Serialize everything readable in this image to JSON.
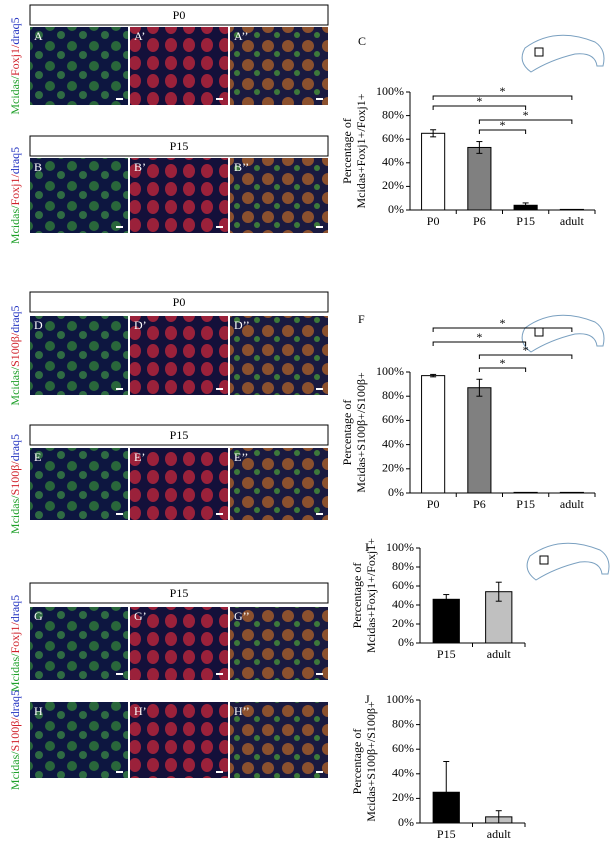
{
  "groups": [
    {
      "header": "P0",
      "rows": [
        {
          "stain": [
            "Mcidas/",
            "Foxj1/",
            "draq5"
          ],
          "labels": [
            "A",
            "A’",
            "A’’"
          ]
        }
      ]
    },
    {
      "header": "P15",
      "rows": [
        {
          "stain": [
            "Mcidas/",
            "Foxj1/",
            "draq5"
          ],
          "labels": [
            "B",
            "B’",
            "B’’"
          ]
        }
      ]
    },
    {
      "header": "P0",
      "rows": [
        {
          "stain": [
            "Mcidas/",
            "S100β/",
            "draq5"
          ],
          "labels": [
            "D",
            "D’",
            "D’’"
          ]
        }
      ]
    },
    {
      "header": "P15",
      "rows": [
        {
          "stain": [
            "Mcidas/",
            "S100β/",
            "draq5"
          ],
          "labels": [
            "E",
            "E’",
            "E’’"
          ]
        }
      ]
    },
    {
      "header": "P15",
      "rows": [
        {
          "stain": [
            "Mcidas/",
            "Foxj1/",
            "draq5"
          ],
          "labels": [
            "G",
            "G’",
            "G’’"
          ]
        },
        {
          "stain": [
            "Mcidas/",
            "S100β/",
            "draq5"
          ],
          "labels": [
            "H",
            "H’",
            "H’’"
          ]
        }
      ]
    }
  ],
  "chart_data": [
    {
      "type": "bar",
      "panel": "C",
      "ylabel": [
        "Percentage of",
        "Mcidas+Foxj1+/Foxj1+"
      ],
      "categories": [
        "P0",
        "P6",
        "P15",
        "adult"
      ],
      "values": [
        65,
        53,
        4,
        0.5
      ],
      "errors": [
        3,
        5,
        2,
        0
      ],
      "colors": [
        "#ffffff",
        "#808080",
        "#000000",
        "#000000"
      ],
      "ylim": [
        0,
        100
      ],
      "yticks": [
        {
          "value": 0,
          "label": "0%"
        },
        {
          "value": 20,
          "label": "20%"
        },
        {
          "value": 40,
          "label": "40%"
        },
        {
          "value": 60,
          "label": "60%"
        },
        {
          "value": 80,
          "label": "80%"
        },
        {
          "value": 100,
          "label": "100%"
        }
      ],
      "annotations": [
        "*",
        "*",
        "*",
        "*"
      ]
    },
    {
      "type": "bar",
      "panel": "F",
      "ylabel": [
        "Percentage of",
        "Mcidas+S100β+/S100β+"
      ],
      "categories": [
        "P0",
        "P6",
        "P15",
        "adult"
      ],
      "values": [
        97,
        87,
        0.5,
        0.5
      ],
      "errors": [
        1,
        7,
        0,
        0
      ],
      "colors": [
        "#ffffff",
        "#808080",
        "#000000",
        "#000000"
      ],
      "ylim": [
        0,
        100
      ],
      "yticks": [
        {
          "value": 0,
          "label": "0%"
        },
        {
          "value": 20,
          "label": "20%"
        },
        {
          "value": 40,
          "label": "40%"
        },
        {
          "value": 60,
          "label": "60%"
        },
        {
          "value": 80,
          "label": "80%"
        },
        {
          "value": 100,
          "label": "100%"
        }
      ],
      "annotations": [
        "*",
        "*",
        "*",
        "*"
      ]
    },
    {
      "type": "bar",
      "panel": "I",
      "ylabel": [
        "Percentage of",
        "Mcidas+Foxj1+/Foxj1+"
      ],
      "categories": [
        "P15",
        "adult"
      ],
      "values": [
        46,
        54
      ],
      "errors": [
        5,
        10
      ],
      "colors": [
        "#000000",
        "#c0c0c0"
      ],
      "ylim": [
        0,
        100
      ],
      "yticks": [
        {
          "value": 0,
          "label": "0%"
        },
        {
          "value": 20,
          "label": "20%"
        },
        {
          "value": 40,
          "label": "40%"
        },
        {
          "value": 60,
          "label": "60%"
        },
        {
          "value": 80,
          "label": "80%"
        },
        {
          "value": 100,
          "label": "100%"
        }
      ]
    },
    {
      "type": "bar",
      "panel": "J",
      "ylabel": [
        "Percentage of",
        "Mcidas+S100β+/S100β+"
      ],
      "categories": [
        "P15",
        "adult"
      ],
      "values": [
        25,
        5
      ],
      "errors": [
        25,
        5
      ],
      "colors": [
        "#000000",
        "#c0c0c0"
      ],
      "ylim": [
        0,
        100
      ],
      "yticks": [
        {
          "value": 0,
          "label": "0%"
        },
        {
          "value": 20,
          "label": "20%"
        },
        {
          "value": 40,
          "label": "40%"
        },
        {
          "value": 60,
          "label": "60%"
        },
        {
          "value": 80,
          "label": "80%"
        },
        {
          "value": 100,
          "label": "100%"
        }
      ]
    }
  ]
}
